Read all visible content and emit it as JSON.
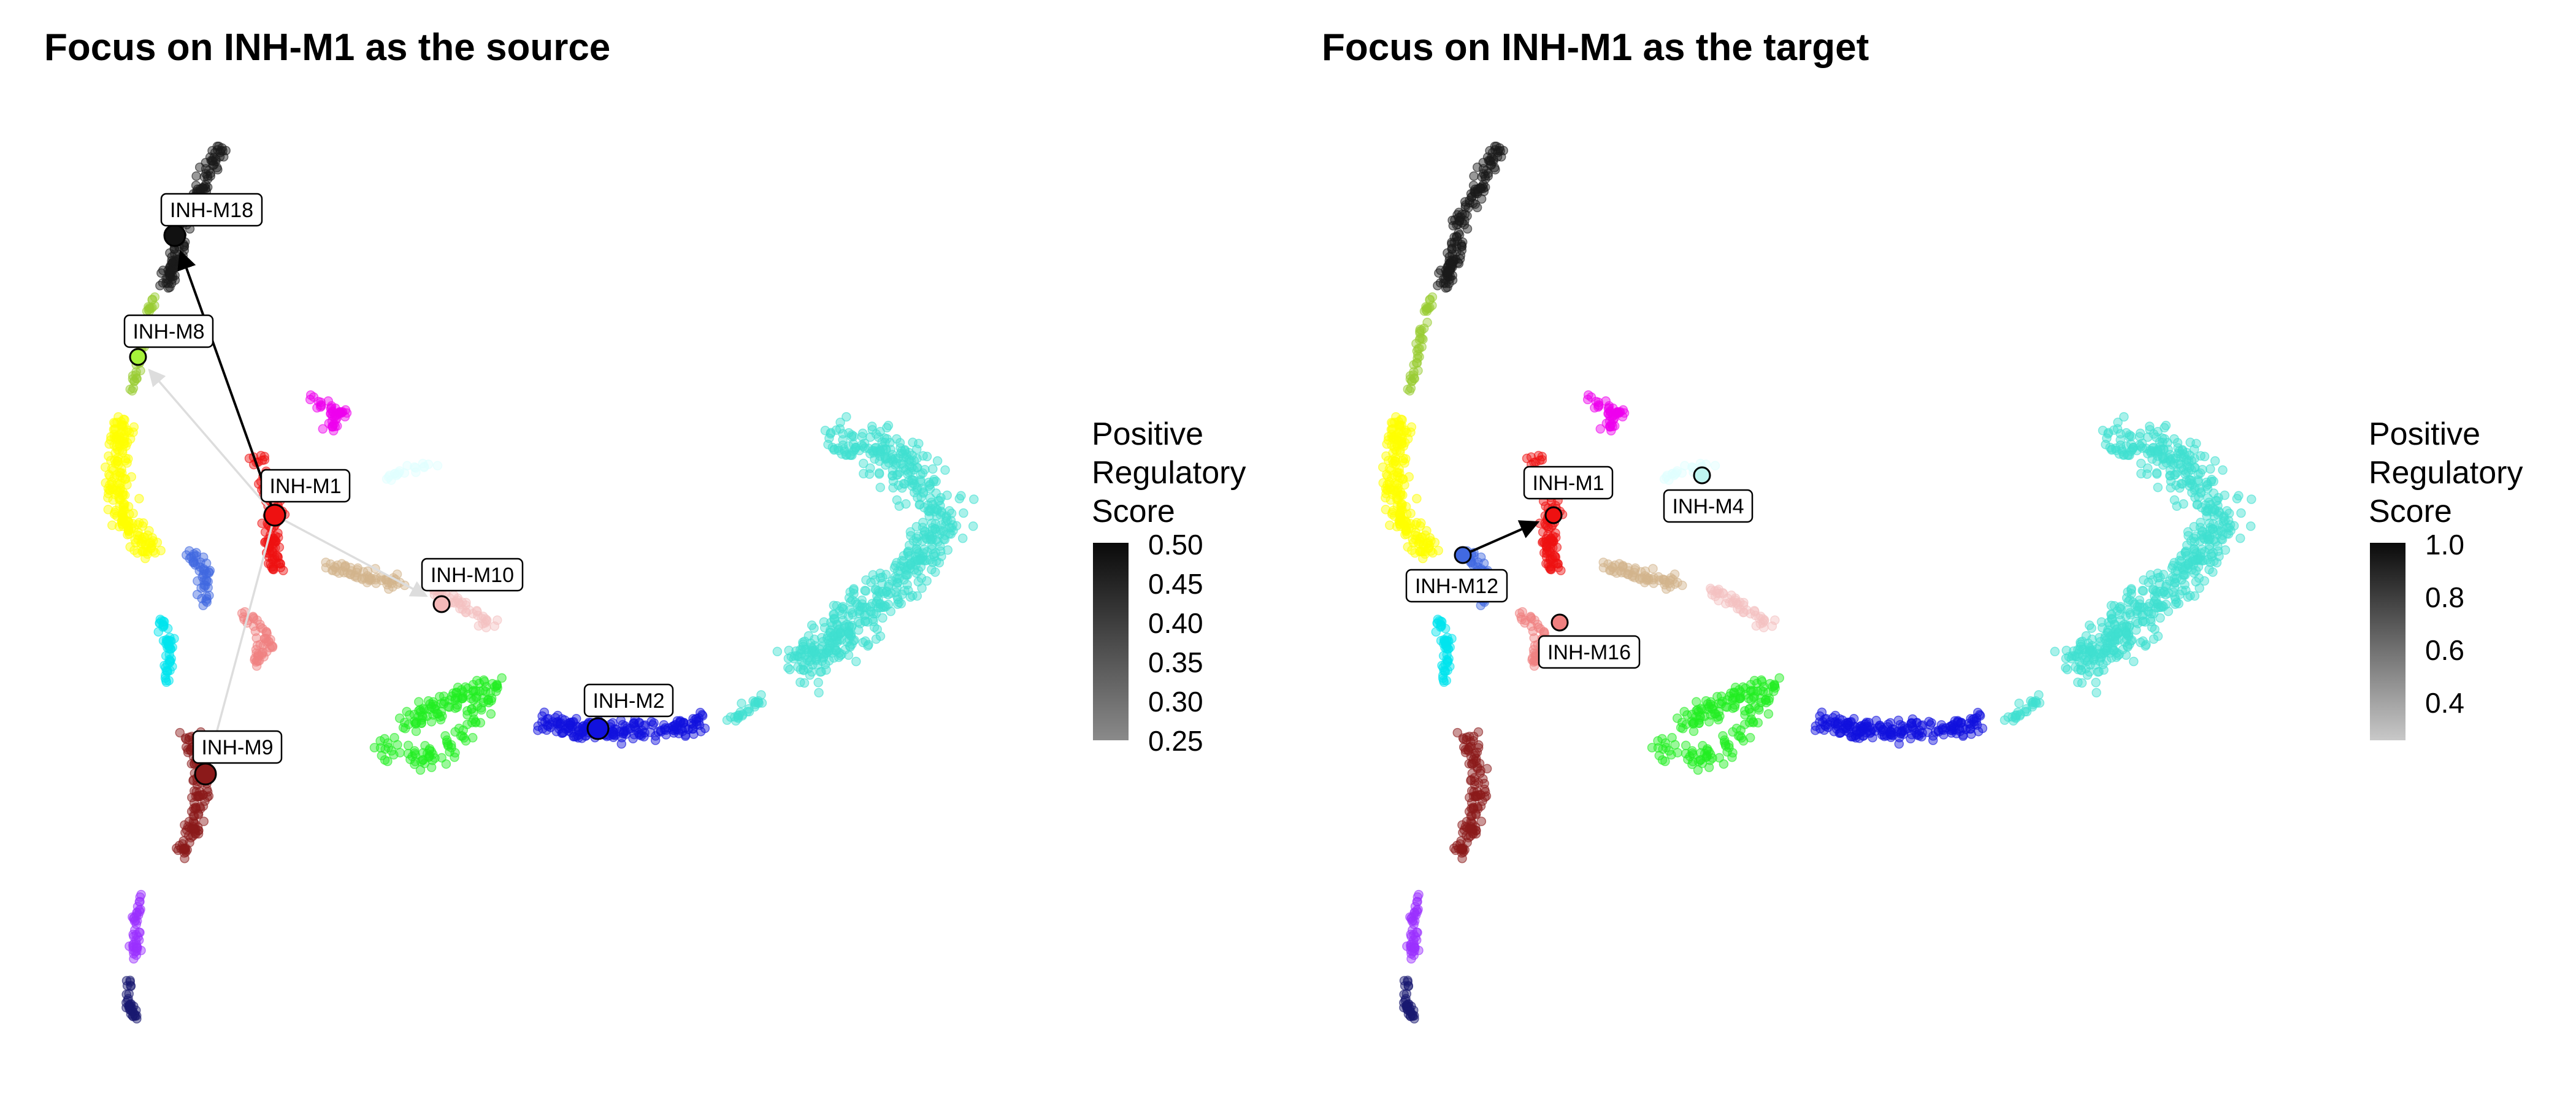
{
  "chart_data": [
    {
      "type": "scatter",
      "title": "Focus on INH-M1 as the source",
      "legend": {
        "title_lines": [
          "Positive",
          "Regulatory",
          "Score"
        ],
        "ticks": [
          "0.50",
          "0.45",
          "0.40",
          "0.35",
          "0.30",
          "0.25"
        ],
        "range": [
          0.25,
          0.5
        ],
        "placement": "right"
      },
      "axes_visible": false,
      "grid": false,
      "highlight_nodes": [
        {
          "label": "INH-M18",
          "color": "#111111",
          "x": 0.7,
          "y": 9.0
        },
        {
          "label": "INH-M8",
          "color": "#a6f23a",
          "x": 0.6,
          "y": 7.8
        },
        {
          "label": "INH-M1",
          "color": "#ee1111",
          "x": 1.4,
          "y": 5.9
        },
        {
          "label": "INH-M10",
          "color": "#f4b8b8",
          "x": 2.3,
          "y": 5.2
        },
        {
          "label": "INH-M2",
          "color": "#1111dd",
          "x": 3.2,
          "y": 4.2
        },
        {
          "label": "INH-M9",
          "color": "#8b1a1a",
          "x": 1.0,
          "y": 3.8
        }
      ],
      "edges": [
        {
          "from": "INH-M1",
          "to": "INH-M18",
          "score": 0.5
        },
        {
          "from": "INH-M1",
          "to": "INH-M8",
          "score": 0.27
        },
        {
          "from": "INH-M1",
          "to": "INH-M10",
          "score": 0.27
        },
        {
          "from": "INH-M1",
          "to": "INH-M9",
          "score": 0.26
        }
      ]
    },
    {
      "type": "scatter",
      "title": "Focus on INH-M1 as the target",
      "legend": {
        "title_lines": [
          "Positive",
          "Regulatory",
          "Score"
        ],
        "ticks": [
          "1.0",
          "0.8",
          "0.6",
          "0.4"
        ],
        "range": [
          0.28,
          1.0
        ],
        "placement": "right"
      },
      "axes_visible": false,
      "grid": false,
      "highlight_nodes": [
        {
          "label": "INH-M1",
          "color": "#ee1111",
          "x": 1.4,
          "y": 5.9
        },
        {
          "label": "INH-M4",
          "color": "#bff5f0",
          "x": 2.2,
          "y": 6.2
        },
        {
          "label": "INH-M12",
          "color": "#4169e1",
          "x": 0.9,
          "y": 5.6
        },
        {
          "label": "INH-M16",
          "color": "#f08080",
          "x": 1.4,
          "y": 5.0
        }
      ],
      "edges": [
        {
          "from": "INH-M12",
          "to": "INH-M1",
          "score": 1.0
        }
      ]
    }
  ],
  "cluster_colors": {
    "INH-M18": "#1a1a1a",
    "INH-M8": "#9acd32",
    "INH-yellow": "#ffff00",
    "INH-magenta": "#ee00ee",
    "INH-M1": "#ee1111",
    "INH-M16": "#f08080",
    "INH-M10": "#f4c2c2",
    "INH-tan": "#d2b48c",
    "INH-M12": "#4169e1",
    "INH-cyan": "#00e5ee",
    "INH-M4": "#e0ffff",
    "INH-green": "#22ee22",
    "INH-M2": "#1111dd",
    "INH-turquoise": "#40e0d0",
    "INH-M9": "#8b1a1a",
    "INH-purple": "#9b30ff",
    "INH-navy": "#191970"
  }
}
